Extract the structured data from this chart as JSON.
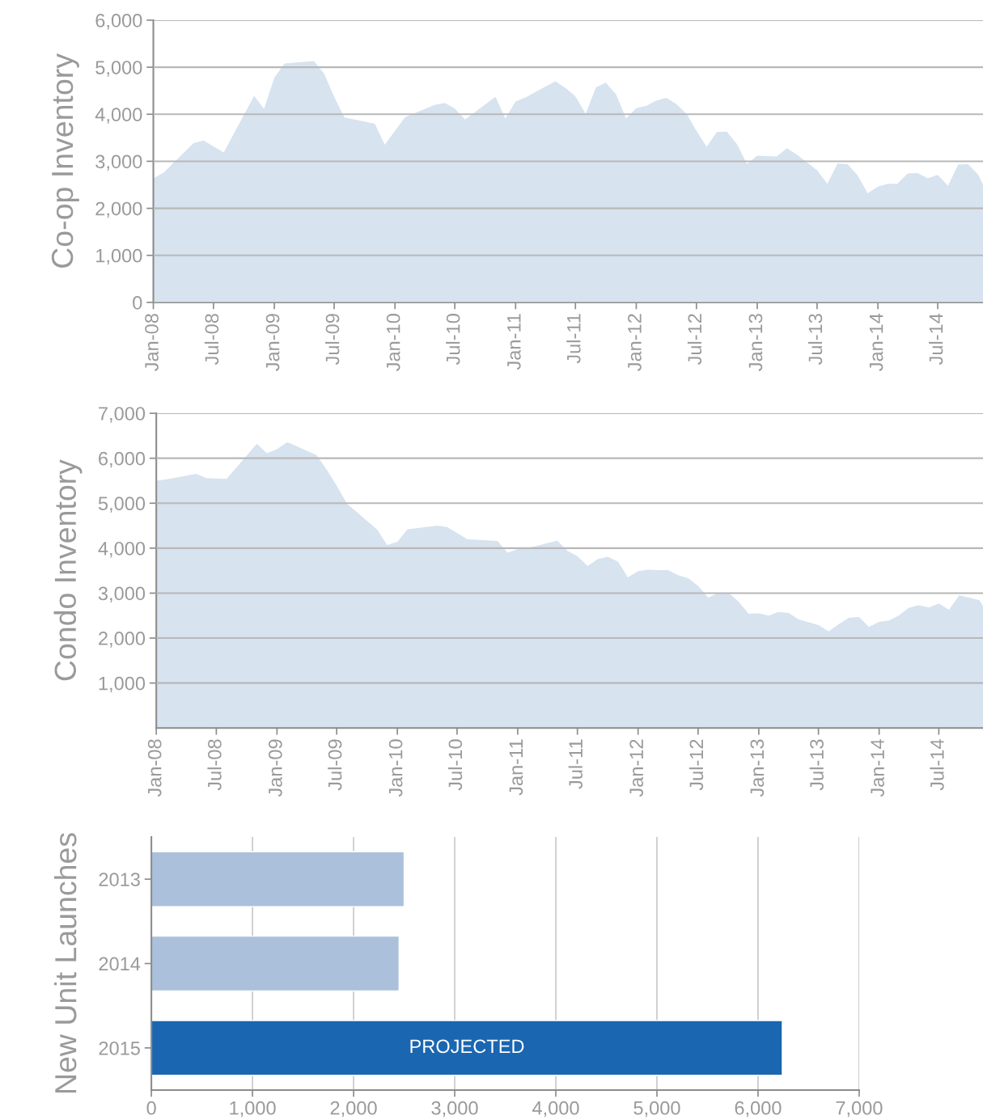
{
  "chart_data": [
    {
      "type": "area",
      "ylabel": "Co-op Inventory",
      "x": [
        "2008-01",
        "2008-02",
        "2008-05",
        "2008-06",
        "2008-08",
        "2008-11",
        "2008-12",
        "2009-01",
        "2009-02",
        "2009-05",
        "2009-06",
        "2009-07",
        "2009-08",
        "2009-11",
        "2009-12",
        "2010-02",
        "2010-05",
        "2010-06",
        "2010-07",
        "2010-08",
        "2010-11",
        "2010-12",
        "2011-01",
        "2011-02",
        "2011-05",
        "2011-06",
        "2011-07",
        "2011-08",
        "2011-09",
        "2011-10",
        "2011-11",
        "2011-12",
        "2012-01",
        "2012-02",
        "2012-03",
        "2012-04",
        "2012-05",
        "2012-06",
        "2012-07",
        "2012-08",
        "2012-09",
        "2012-10",
        "2012-11",
        "2012-12",
        "2013-01",
        "2013-03",
        "2013-04",
        "2013-05",
        "2013-07",
        "2013-08",
        "2013-09",
        "2013-10",
        "2013-11",
        "2013-12",
        "2014-01",
        "2014-02",
        "2014-03",
        "2014-04",
        "2014-05",
        "2014-06",
        "2014-07",
        "2014-08",
        "2014-09",
        "2014-10",
        "2014-11",
        "2014-11-15"
      ],
      "series": [
        {
          "color": "#d7e3ef",
          "values": [
            2640,
            2760,
            3380,
            3440,
            3190,
            4390,
            4110,
            4780,
            5080,
            5130,
            4860,
            4370,
            3930,
            3800,
            3350,
            3940,
            4200,
            4240,
            4120,
            3890,
            4370,
            3910,
            4270,
            4360,
            4700,
            4560,
            4380,
            4010,
            4570,
            4670,
            4420,
            3910,
            4130,
            4180,
            4290,
            4350,
            4220,
            4010,
            3650,
            3310,
            3620,
            3630,
            3360,
            2940,
            3120,
            3100,
            3280,
            3140,
            2810,
            2520,
            2950,
            2940,
            2700,
            2320,
            2460,
            2520,
            2520,
            2740,
            2750,
            2640,
            2710,
            2480,
            2930,
            2940,
            2710,
            2500
          ]
        }
      ],
      "xlim": [
        "2008-01",
        "2014-11-15"
      ],
      "ylim": [
        0,
        6000
      ],
      "xticks": [
        {
          "value": "2008-01",
          "label": "Jan-08"
        },
        {
          "value": "2008-07",
          "label": "Jul-08"
        },
        {
          "value": "2009-01",
          "label": "Jan-09"
        },
        {
          "value": "2009-07",
          "label": "Jul-09"
        },
        {
          "value": "2010-01",
          "label": "Jan-10"
        },
        {
          "value": "2010-07",
          "label": "Jul-10"
        },
        {
          "value": "2011-01",
          "label": "Jan-11"
        },
        {
          "value": "2011-07",
          "label": "Jul-11"
        },
        {
          "value": "2012-01",
          "label": "Jan-12"
        },
        {
          "value": "2012-07",
          "label": "Jul-12"
        },
        {
          "value": "2013-01",
          "label": "Jan-13"
        },
        {
          "value": "2013-07",
          "label": "Jul-13"
        },
        {
          "value": "2014-01",
          "label": "Jan-14"
        },
        {
          "value": "2014-07",
          "label": "Jul-14"
        }
      ],
      "yticks": [
        0,
        {
          "value": 1000,
          "label": "1,000"
        },
        {
          "value": 2000,
          "label": "2,000"
        },
        {
          "value": 3000,
          "label": "3,000"
        },
        {
          "value": 4000,
          "label": "4,000"
        },
        {
          "value": 5000,
          "label": "5,000"
        },
        {
          "value": 6000,
          "label": "6,000"
        }
      ],
      "grid": "y",
      "legend": false
    },
    {
      "type": "area",
      "ylabel": "Condo Inventory",
      "x": [
        "2008-01",
        "2008-02",
        "2008-05",
        "2008-06",
        "2008-08",
        "2008-11",
        "2008-12",
        "2009-01",
        "2009-02",
        "2009-05",
        "2009-06",
        "2009-07",
        "2009-08",
        "2009-11",
        "2009-12",
        "2010-01",
        "2010-02",
        "2010-05",
        "2010-06",
        "2010-08",
        "2010-11",
        "2010-12",
        "2011-01",
        "2011-02",
        "2011-05",
        "2011-06",
        "2011-07",
        "2011-08",
        "2011-09",
        "2011-10",
        "2011-11",
        "2011-12",
        "2012-01",
        "2012-02",
        "2012-03",
        "2012-04",
        "2012-05",
        "2012-06",
        "2012-07",
        "2012-08",
        "2012-09",
        "2012-10",
        "2012-11",
        "2012-12",
        "2013-01",
        "2013-02",
        "2013-03",
        "2013-04",
        "2013-05",
        "2013-07",
        "2013-08",
        "2013-09",
        "2013-10",
        "2013-11",
        "2013-12",
        "2014-01",
        "2014-02",
        "2014-03",
        "2014-04",
        "2014-05",
        "2014-06",
        "2014-07",
        "2014-08",
        "2014-09",
        "2014-10",
        "2014-11",
        "2014-11-12"
      ],
      "series": [
        {
          "color": "#d7e3ef",
          "values": [
            5500,
            5530,
            5650,
            5560,
            5540,
            6320,
            6110,
            6200,
            6360,
            6070,
            5740,
            5390,
            4990,
            4410,
            4070,
            4140,
            4420,
            4500,
            4470,
            4200,
            4160,
            3900,
            3980,
            4000,
            4170,
            3940,
            3820,
            3600,
            3760,
            3810,
            3700,
            3350,
            3490,
            3520,
            3510,
            3510,
            3400,
            3330,
            3160,
            2900,
            3010,
            3010,
            2810,
            2540,
            2550,
            2500,
            2580,
            2560,
            2420,
            2290,
            2150,
            2310,
            2450,
            2470,
            2250,
            2360,
            2390,
            2500,
            2670,
            2730,
            2680,
            2770,
            2630,
            2950,
            2900,
            2840,
            2710
          ]
        }
      ],
      "xlim": [
        "2008-01",
        "2014-11-12"
      ],
      "ylim": [
        0,
        7000
      ],
      "xticks": [
        {
          "value": "2008-01",
          "label": "Jan-08"
        },
        {
          "value": "2008-07",
          "label": "Jul-08"
        },
        {
          "value": "2009-01",
          "label": "Jan-09"
        },
        {
          "value": "2009-07",
          "label": "Jul-09"
        },
        {
          "value": "2010-01",
          "label": "Jan-10"
        },
        {
          "value": "2010-07",
          "label": "Jul-10"
        },
        {
          "value": "2011-01",
          "label": "Jan-11"
        },
        {
          "value": "2011-07",
          "label": "Jul-11"
        },
        {
          "value": "2012-01",
          "label": "Jan-12"
        },
        {
          "value": "2012-07",
          "label": "Jul-12"
        },
        {
          "value": "2013-01",
          "label": "Jan-13"
        },
        {
          "value": "2013-07",
          "label": "Jul-13"
        },
        {
          "value": "2014-01",
          "label": "Jan-14"
        },
        {
          "value": "2014-07",
          "label": "Jul-14"
        }
      ],
      "yticks": [
        {
          "value": 1000,
          "label": "1,000"
        },
        {
          "value": 2000,
          "label": "2,000"
        },
        {
          "value": 3000,
          "label": "3,000"
        },
        {
          "value": 4000,
          "label": "4,000"
        },
        {
          "value": 5000,
          "label": "5,000"
        },
        {
          "value": 6000,
          "label": "6,000"
        },
        {
          "value": 7000,
          "label": "7,000"
        }
      ],
      "grid": "y",
      "legend": false
    },
    {
      "type": "bar",
      "orientation": "horizontal",
      "ylabel": "New Unit Launches",
      "categories": [
        "2013",
        "2014",
        "2015"
      ],
      "values": [
        2500,
        2450,
        6240
      ],
      "colors": [
        "#abc0da",
        "#abc0da",
        "#1a66b1"
      ],
      "xlim": [
        0,
        7000
      ],
      "xticks": [
        0,
        {
          "value": 1000,
          "label": "1,000"
        },
        {
          "value": 2000,
          "label": "2,000"
        },
        {
          "value": 3000,
          "label": "3,000"
        },
        {
          "value": 4000,
          "label": "4,000"
        },
        {
          "value": 5000,
          "label": "5,000"
        },
        {
          "value": 6000,
          "label": "6,000"
        },
        {
          "value": 7000,
          "label": "7,000"
        }
      ],
      "annotations": [
        "PROJECTED"
      ],
      "grid": "x",
      "legend": false
    }
  ]
}
